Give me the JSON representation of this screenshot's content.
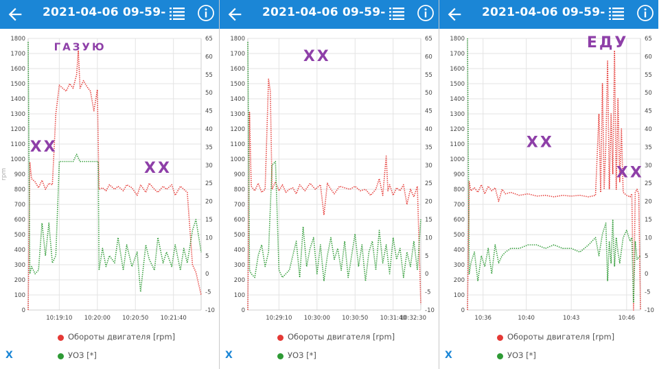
{
  "colors": {
    "appbar": "#1b86d6",
    "rpm": "#e53935",
    "uoz": "#2e9a35",
    "annotation": "#8e3fa8",
    "grid": "#e3e3e3"
  },
  "panels": [
    {
      "title": "2021-04-06 09-59-...",
      "back_icon": "arrow-left-icon",
      "list_icon": "list-icon",
      "info_icon": "info-icon",
      "x_button": "X",
      "legend": {
        "rpm": "Обороты двигателя [rpm]",
        "uoz": "УОЗ [*]"
      }
    },
    {
      "title": "2021-04-06 09-59-...",
      "back_icon": "arrow-left-icon",
      "list_icon": "list-icon",
      "info_icon": "info-icon",
      "x_button": "X",
      "legend": {
        "rpm": "Обороты двигателя [rpm]",
        "uoz": "УОЗ [*]"
      }
    },
    {
      "title": "2021-04-06 09-59-...",
      "back_icon": "arrow-left-icon",
      "list_icon": "list-icon",
      "info_icon": "info-icon",
      "x_button": "X",
      "legend": {
        "rpm": "Обороты двигателя [rpm]",
        "uoz": "УОЗ [*]"
      }
    }
  ],
  "chart_data": [
    {
      "type": "line",
      "ylabel": "rpm",
      "ylim": [
        0,
        1800
      ],
      "y2lim": [
        -10,
        65
      ],
      "yticks": [
        "0",
        "100",
        "200",
        "300",
        "400",
        "500",
        "600",
        "700",
        "800",
        "900",
        "1000",
        "1100",
        "1200",
        "1300",
        "1400",
        "1500",
        "1600",
        "1700",
        "1800"
      ],
      "y2ticks": [
        "-10",
        "-5",
        "0",
        "5",
        "10",
        "15",
        "20",
        "25",
        "30",
        "35",
        "40",
        "45",
        "50",
        "55",
        "60",
        "65"
      ],
      "xticks": [
        {
          "t": 0.18,
          "label": "10:19:10"
        },
        {
          "t": 0.4,
          "label": "10:20:00"
        },
        {
          "t": 0.62,
          "label": "10:20:50"
        },
        {
          "t": 0.84,
          "label": "10:21:40"
        }
      ],
      "annotations": [
        {
          "text": "ГАЗУЮ",
          "tx": 0.3,
          "vy": 1720
        },
        {
          "text": "ХХ",
          "tx": 0.09,
          "vy": 1050
        },
        {
          "text": "ХХ",
          "tx": 0.75,
          "vy": 910
        }
      ],
      "series": [
        {
          "name": "Обороты двигателя [rpm]",
          "axis": "left",
          "color": "rpm",
          "t": [
            0,
            0.01,
            0.02,
            0.04,
            0.06,
            0.08,
            0.1,
            0.12,
            0.14,
            0.16,
            0.18,
            0.2,
            0.22,
            0.24,
            0.26,
            0.28,
            0.29,
            0.3,
            0.32,
            0.34,
            0.36,
            0.38,
            0.4,
            0.405,
            0.41,
            0.43,
            0.45,
            0.47,
            0.5,
            0.52,
            0.55,
            0.57,
            0.6,
            0.63,
            0.65,
            0.68,
            0.7,
            0.73,
            0.75,
            0.78,
            0.8,
            0.83,
            0.85,
            0.88,
            0.9,
            0.92,
            0.95,
            0.97,
            1.0
          ],
          "v": [
            0,
            980,
            870,
            850,
            810,
            860,
            800,
            840,
            830,
            1300,
            1490,
            1470,
            1450,
            1500,
            1470,
            1560,
            1720,
            1470,
            1520,
            1480,
            1450,
            1320,
            1460,
            1100,
            800,
            810,
            790,
            830,
            800,
            820,
            790,
            830,
            810,
            760,
            830,
            780,
            840,
            800,
            780,
            820,
            800,
            830,
            760,
            820,
            800,
            780,
            300,
            250,
            100
          ]
        },
        {
          "name": "УОЗ [*]",
          "axis": "right",
          "color": "uoz",
          "t": [
            0,
            0.01,
            0.02,
            0.04,
            0.06,
            0.08,
            0.1,
            0.12,
            0.14,
            0.16,
            0.18,
            0.2,
            0.22,
            0.24,
            0.26,
            0.28,
            0.3,
            0.32,
            0.34,
            0.36,
            0.38,
            0.4,
            0.405,
            0.41,
            0.43,
            0.45,
            0.47,
            0.5,
            0.52,
            0.55,
            0.57,
            0.6,
            0.63,
            0.65,
            0.68,
            0.7,
            0.73,
            0.75,
            0.78,
            0.8,
            0.83,
            0.85,
            0.88,
            0.9,
            0.92,
            0.95,
            0.97,
            1.0
          ],
          "v": [
            64,
            0,
            2,
            0,
            1,
            14,
            5,
            14,
            3,
            5,
            31,
            31,
            31,
            31,
            31,
            33,
            31,
            31,
            31,
            31,
            31,
            31,
            31,
            1,
            7,
            2,
            5,
            3,
            10,
            1,
            8,
            2,
            6,
            -5,
            8,
            4,
            1,
            10,
            3,
            6,
            2,
            8,
            1,
            7,
            3,
            12,
            15,
            6
          ]
        }
      ]
    },
    {
      "type": "line",
      "ylabel": "",
      "ylim": [
        0,
        1800
      ],
      "y2lim": [
        -10,
        65
      ],
      "yticks": [
        "0",
        "100",
        "200",
        "300",
        "400",
        "500",
        "600",
        "700",
        "800",
        "900",
        "1000",
        "1100",
        "1200",
        "1300",
        "1400",
        "1500",
        "1600",
        "1700",
        "1800"
      ],
      "y2ticks": [
        "-10",
        "-5",
        "0",
        "5",
        "10",
        "15",
        "20",
        "25",
        "30",
        "35",
        "40",
        "45",
        "50",
        "55",
        "60",
        "65"
      ],
      "xticks": [
        {
          "t": 0.18,
          "label": "10:29:10"
        },
        {
          "t": 0.4,
          "label": "10:30:00"
        },
        {
          "t": 0.62,
          "label": "10:30:50"
        },
        {
          "t": 0.84,
          "label": "10:31:40"
        },
        {
          "t": 1.0,
          "label": "10:32:30"
        }
      ],
      "annotations": [
        {
          "text": "ХХ",
          "tx": 0.4,
          "vy": 1650
        }
      ],
      "series": [
        {
          "name": "Обороты двигателя [rpm]",
          "axis": "left",
          "color": "rpm",
          "t": [
            0,
            0.01,
            0.02,
            0.04,
            0.06,
            0.08,
            0.1,
            0.12,
            0.13,
            0.14,
            0.16,
            0.18,
            0.2,
            0.22,
            0.24,
            0.26,
            0.28,
            0.3,
            0.33,
            0.36,
            0.39,
            0.42,
            0.44,
            0.46,
            0.48,
            0.5,
            0.53,
            0.56,
            0.59,
            0.62,
            0.65,
            0.68,
            0.71,
            0.74,
            0.76,
            0.78,
            0.8,
            0.81,
            0.82,
            0.84,
            0.86,
            0.88,
            0.9,
            0.92,
            0.94,
            0.96,
            0.98,
            1.0
          ],
          "v": [
            0,
            1310,
            820,
            790,
            840,
            780,
            800,
            1530,
            1450,
            800,
            850,
            790,
            830,
            780,
            800,
            810,
            770,
            830,
            790,
            840,
            800,
            830,
            630,
            840,
            800,
            770,
            820,
            810,
            800,
            820,
            790,
            800,
            760,
            800,
            870,
            760,
            1020,
            790,
            830,
            760,
            810,
            790,
            830,
            700,
            800,
            750,
            820,
            40
          ]
        },
        {
          "name": "УОЗ [*]",
          "axis": "right",
          "color": "uoz",
          "t": [
            0,
            0.01,
            0.02,
            0.04,
            0.06,
            0.08,
            0.1,
            0.12,
            0.14,
            0.16,
            0.18,
            0.2,
            0.22,
            0.24,
            0.26,
            0.28,
            0.3,
            0.32,
            0.34,
            0.36,
            0.38,
            0.4,
            0.42,
            0.44,
            0.46,
            0.48,
            0.5,
            0.52,
            0.54,
            0.56,
            0.58,
            0.6,
            0.62,
            0.64,
            0.66,
            0.68,
            0.7,
            0.72,
            0.74,
            0.76,
            0.78,
            0.8,
            0.82,
            0.84,
            0.86,
            0.88,
            0.9,
            0.92,
            0.94,
            0.96,
            0.98,
            1.0
          ],
          "v": [
            64,
            1,
            0,
            -1,
            5,
            8,
            2,
            6,
            30,
            31,
            1,
            -1,
            0,
            1,
            5,
            9,
            -1,
            13,
            2,
            7,
            10,
            0,
            8,
            -2,
            5,
            10,
            4,
            7,
            1,
            9,
            -1,
            5,
            11,
            2,
            8,
            -2,
            6,
            9,
            1,
            12,
            3,
            8,
            0,
            10,
            4,
            7,
            -1,
            6,
            2,
            9,
            1,
            15
          ]
        }
      ]
    },
    {
      "type": "line",
      "ylabel": "",
      "ylim": [
        0,
        1800
      ],
      "y2lim": [
        -10,
        65
      ],
      "yticks": [
        "0",
        "100",
        "200",
        "300",
        "400",
        "500",
        "600",
        "700",
        "800",
        "900",
        "1000",
        "1100",
        "1200",
        "1300",
        "1400",
        "1500",
        "1600",
        "1700",
        "1800"
      ],
      "y2ticks": [
        "-10",
        "-5",
        "0",
        "5",
        "10",
        "15",
        "20",
        "25",
        "30",
        "35",
        "40",
        "45",
        "50",
        "55",
        "60",
        "65"
      ],
      "xticks": [
        {
          "t": 0.09,
          "label": "10:36"
        },
        {
          "t": 0.34,
          "label": "10:40"
        },
        {
          "t": 0.6,
          "label": "10:43"
        },
        {
          "t": 0.92,
          "label": "10:46"
        }
      ],
      "annotations": [
        {
          "text": "ЕДУ",
          "tx": 0.81,
          "vy": 1740
        },
        {
          "text": "ХХ",
          "tx": 0.42,
          "vy": 1080
        },
        {
          "text": "ХХ",
          "tx": 0.94,
          "vy": 880
        }
      ],
      "series": [
        {
          "name": "Обороты двигателя [rpm]",
          "axis": "left",
          "color": "rpm",
          "t": [
            0,
            0.01,
            0.02,
            0.04,
            0.06,
            0.08,
            0.1,
            0.12,
            0.14,
            0.16,
            0.18,
            0.2,
            0.22,
            0.25,
            0.3,
            0.35,
            0.4,
            0.45,
            0.5,
            0.55,
            0.6,
            0.65,
            0.7,
            0.74,
            0.76,
            0.77,
            0.78,
            0.79,
            0.8,
            0.81,
            0.82,
            0.83,
            0.84,
            0.85,
            0.86,
            0.87,
            0.88,
            0.89,
            0.9,
            0.92,
            0.94,
            0.95,
            0.96,
            0.97,
            0.98,
            0.99,
            1.0
          ],
          "v": [
            0,
            850,
            790,
            810,
            780,
            830,
            770,
            820,
            790,
            810,
            720,
            800,
            770,
            780,
            760,
            770,
            755,
            760,
            750,
            760,
            755,
            760,
            750,
            760,
            1300,
            780,
            1500,
            800,
            1100,
            1650,
            800,
            1300,
            900,
            1720,
            800,
            1400,
            850,
            1200,
            780,
            760,
            750,
            770,
            0,
            780,
            800,
            770,
            0
          ]
        },
        {
          "name": "УОЗ [*]",
          "axis": "right",
          "color": "uoz",
          "t": [
            0,
            0.01,
            0.02,
            0.04,
            0.06,
            0.08,
            0.1,
            0.12,
            0.14,
            0.16,
            0.18,
            0.2,
            0.22,
            0.25,
            0.3,
            0.35,
            0.4,
            0.45,
            0.5,
            0.55,
            0.6,
            0.65,
            0.7,
            0.74,
            0.76,
            0.78,
            0.8,
            0.81,
            0.82,
            0.83,
            0.84,
            0.85,
            0.86,
            0.87,
            0.88,
            0.9,
            0.92,
            0.94,
            0.95,
            0.96,
            0.97,
            0.98,
            1.0
          ],
          "v": [
            65,
            0,
            3,
            6,
            -2,
            5,
            2,
            7,
            0,
            8,
            3,
            5,
            6,
            7,
            7,
            8,
            8,
            7,
            8,
            7,
            7,
            6,
            8,
            10,
            5,
            11,
            14,
            -2,
            9,
            3,
            15,
            2,
            10,
            6,
            3,
            10,
            12,
            9,
            10,
            -8,
            9,
            4,
            5
          ]
        }
      ]
    }
  ]
}
